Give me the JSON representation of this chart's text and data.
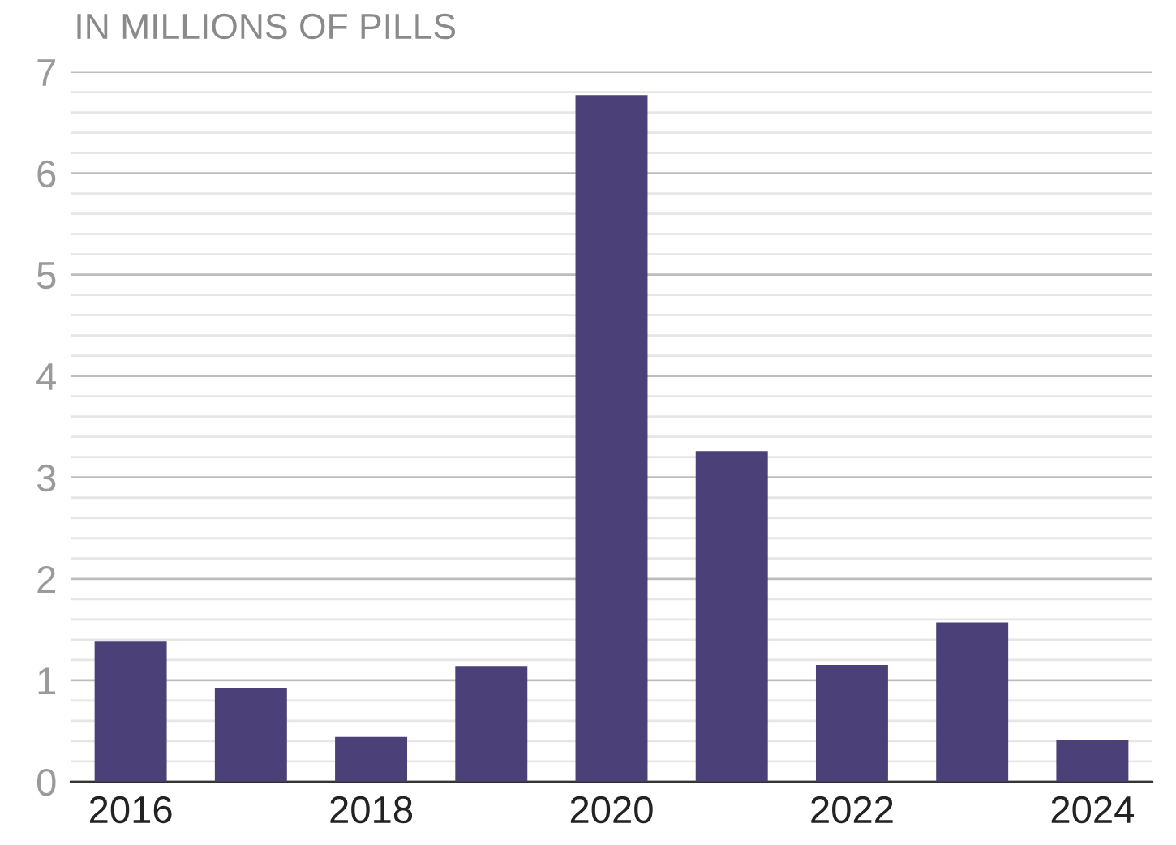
{
  "chart_data": {
    "type": "bar",
    "ylabel": "IN MILLIONS OF PILLS",
    "categories": [
      "2016",
      null,
      "2018",
      null,
      "2020",
      null,
      "2022",
      null,
      "2024"
    ],
    "values": [
      1.38,
      0.92,
      0.44,
      1.14,
      6.77,
      3.26,
      1.15,
      1.57,
      0.41
    ],
    "color": "#4b4178",
    "ylim": [
      0,
      7
    ],
    "yticks": [
      0,
      {
        "value": 0.2,
        "label": null
      },
      {
        "value": 0.4,
        "label": null
      },
      {
        "value": 0.6,
        "label": null
      },
      {
        "value": 0.8,
        "label": null
      },
      1,
      {
        "value": 1.2,
        "label": null
      },
      {
        "value": 1.4,
        "label": null
      },
      {
        "value": 1.6,
        "label": null
      },
      {
        "value": 1.8,
        "label": null
      },
      2,
      {
        "value": 2.2,
        "label": null
      },
      {
        "value": 2.4,
        "label": null
      },
      {
        "value": 2.6,
        "label": null
      },
      {
        "value": 2.8,
        "label": null
      },
      3,
      {
        "value": 3.2,
        "label": null
      },
      {
        "value": 3.4,
        "label": null
      },
      {
        "value": 3.6,
        "label": null
      },
      {
        "value": 3.8,
        "label": null
      },
      4,
      {
        "value": 4.2,
        "label": null
      },
      {
        "value": 4.4,
        "label": null
      },
      {
        "value": 4.6,
        "label": null
      },
      {
        "value": 4.8,
        "label": null
      },
      5,
      {
        "value": 5.2,
        "label": null
      },
      {
        "value": 5.4,
        "label": null
      },
      {
        "value": 5.6,
        "label": null
      },
      {
        "value": 5.8,
        "label": null
      },
      6,
      {
        "value": 6.2,
        "label": null
      },
      {
        "value": 6.4,
        "label": null
      },
      {
        "value": 6.6,
        "label": null
      },
      {
        "value": 6.8,
        "label": null
      },
      7
    ],
    "grid": "y"
  }
}
